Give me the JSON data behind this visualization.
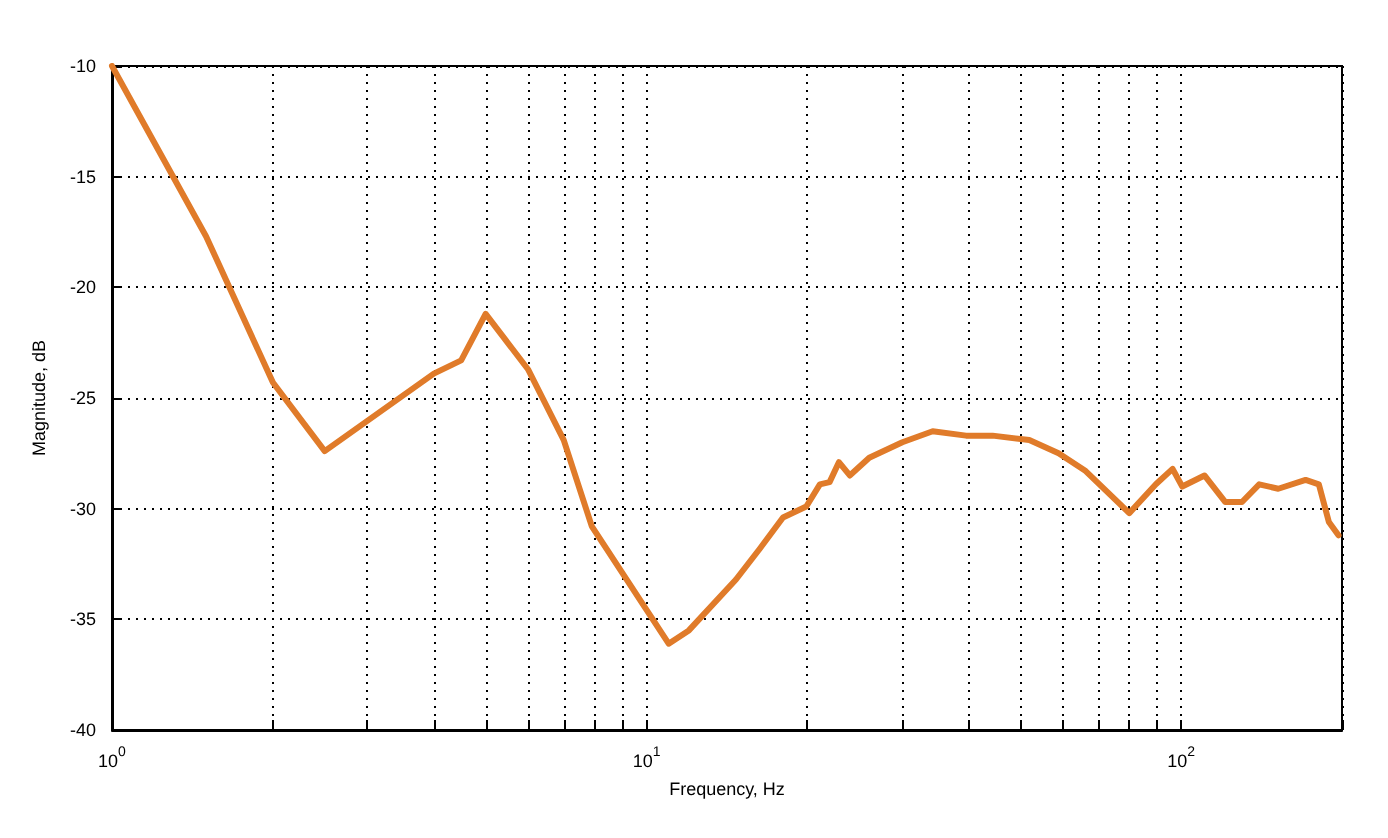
{
  "chart_data": {
    "type": "line",
    "xlabel": "Frequency, Hz",
    "ylabel": "Magnitude, dB",
    "log": "x",
    "grid": true,
    "marker": "none",
    "line_style": "solid",
    "xlim": [
      1,
      200
    ],
    "ylim": [
      -40,
      -10
    ],
    "xticks": [
      {
        "value": 1,
        "label": "10$^{0}$"
      },
      {
        "value": 2,
        "label": null
      },
      {
        "value": 3,
        "label": null
      },
      {
        "value": 4,
        "label": null
      },
      {
        "value": 5,
        "label": null
      },
      {
        "value": 6,
        "label": null
      },
      {
        "value": 7,
        "label": null
      },
      {
        "value": 8,
        "label": null
      },
      {
        "value": 9,
        "label": null
      },
      {
        "value": 10,
        "label": "10$^{1}$"
      },
      {
        "value": 20,
        "label": null
      },
      {
        "value": 30,
        "label": null
      },
      {
        "value": 40,
        "label": null
      },
      {
        "value": 50,
        "label": null
      },
      {
        "value": 60,
        "label": null
      },
      {
        "value": 70,
        "label": null
      },
      {
        "value": 80,
        "label": null
      },
      {
        "value": 90,
        "label": null
      },
      {
        "value": 100,
        "label": "10$^{2}$"
      },
      {
        "value": 200,
        "label": null
      }
    ],
    "yticks": [
      -40,
      -35,
      -30,
      -25,
      -20,
      -15,
      -10
    ],
    "series": [
      {
        "color": "#e07b2a",
        "x": [
          1,
          1.5,
          2,
          2.5,
          4,
          4.5,
          5,
          6,
          7,
          7.9,
          11,
          12,
          14.7,
          16.3,
          18,
          19.9,
          21.1,
          22,
          22.9,
          24,
          26.1,
          30.1,
          34.3,
          39.6,
          44.4,
          52,
          59,
          66.3,
          80,
          89.7,
          96.4,
          100.5,
          110.6,
          121,
          130,
          140,
          152,
          171,
          181,
          189,
          197
        ],
        "values": [
          -10,
          -17.7,
          -24.3,
          -27.4,
          -23.9,
          -23.3,
          -21.2,
          -23.7,
          -26.9,
          -30.8,
          -36.1,
          -35.5,
          -33.2,
          -31.8,
          -30.4,
          -29.9,
          -28.9,
          -28.8,
          -27.9,
          -28.5,
          -27.7,
          -27,
          -26.5,
          -26.7,
          -26.7,
          -26.9,
          -27.5,
          -28.3,
          -30.2,
          -28.9,
          -28.2,
          -29,
          -28.5,
          -29.7,
          -29.7,
          -28.9,
          -29.1,
          -28.7,
          -28.9,
          -30.6,
          -31.2
        ]
      }
    ]
  }
}
